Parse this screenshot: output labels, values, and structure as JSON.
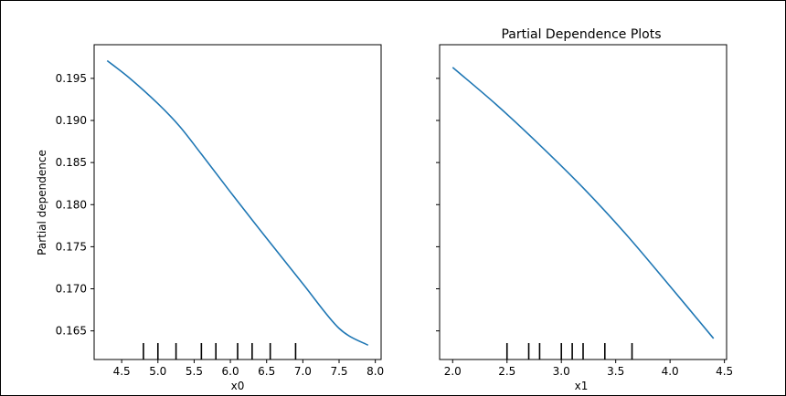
{
  "chart_data": [
    {
      "type": "line",
      "title": "",
      "xlabel": "x0",
      "ylabel": "Partial dependence",
      "xlim": [
        4.12,
        8.08
      ],
      "ylim": [
        0.1616,
        0.199
      ],
      "xticks": [
        "4.5",
        "5.0",
        "5.5",
        "6.0",
        "6.5",
        "7.0",
        "7.5",
        "8.0"
      ],
      "yticks": [
        "0.165",
        "0.170",
        "0.175",
        "0.180",
        "0.185",
        "0.190",
        "0.195"
      ],
      "color": "#1f77b4",
      "x": [
        4.3,
        4.6,
        5.0,
        5.3,
        5.6,
        6.0,
        6.5,
        7.0,
        7.5,
        7.9
      ],
      "y": [
        0.1971,
        0.1951,
        0.192,
        0.1893,
        0.186,
        0.1815,
        0.176,
        0.1706,
        0.1653,
        0.1633
      ],
      "deciles": [
        4.8,
        5.0,
        5.25,
        5.6,
        5.8,
        6.1,
        6.3,
        6.55,
        6.9
      ]
    },
    {
      "type": "line",
      "title": "Partial Dependence Plots",
      "xlabel": "x1",
      "ylabel": "",
      "xlim": [
        1.88,
        4.52
      ],
      "ylim": [
        0.1616,
        0.199
      ],
      "xticks": [
        "2.0",
        "2.5",
        "3.0",
        "3.5",
        "4.0",
        "4.5"
      ],
      "yticks": [],
      "color": "#1f77b4",
      "x": [
        2.0,
        2.4,
        2.8,
        3.2,
        3.6,
        4.0,
        4.4
      ],
      "y": [
        0.1963,
        0.1919,
        0.1871,
        0.182,
        0.1764,
        0.1703,
        0.1641
      ],
      "deciles": [
        2.5,
        2.7,
        2.8,
        3.0,
        3.1,
        3.2,
        3.4,
        3.65
      ]
    }
  ]
}
